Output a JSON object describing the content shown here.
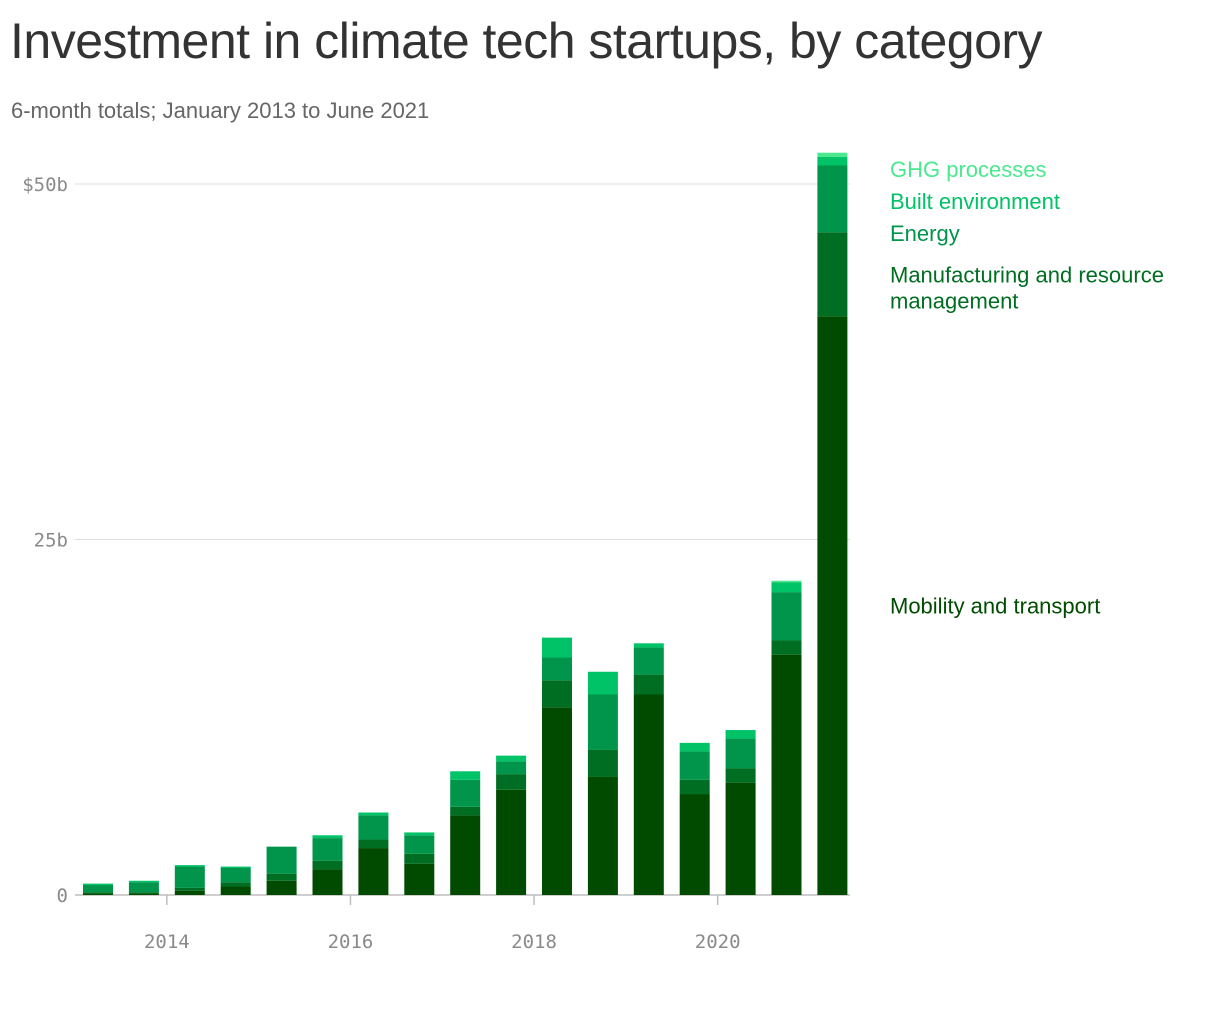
{
  "title": "Investment in climate tech startups, by category",
  "subtitle": "6-month totals; January 2013 to June 2021",
  "chart_data": {
    "type": "bar",
    "stacked": true,
    "categories": [
      "H1 2013",
      "H2 2013",
      "H1 2014",
      "H2 2014",
      "H1 2015",
      "H2 2015",
      "H1 2016",
      "H2 2016",
      "H1 2017",
      "H2 2017",
      "H1 2018",
      "H2 2018",
      "H1 2019",
      "H2 2019",
      "H1 2020",
      "H2 2020",
      "H1 2021"
    ],
    "x_tick_labels": [
      "2014",
      "2016",
      "2018",
      "2020"
    ],
    "x_tick_categories": [
      "H1 2014",
      "H1 2016",
      "H1 2018",
      "H1 2020"
    ],
    "y_tick_labels": [
      "0",
      "25b",
      "$50b"
    ],
    "y_tick_values": [
      0,
      25,
      50
    ],
    "ylim": [
      0,
      53
    ],
    "unit": "billion USD",
    "grid": true,
    "legend_placement": "right, inline labels",
    "series": [
      {
        "name": "Mobility and transport",
        "color": "#004b00",
        "values": [
          0.1,
          0.1,
          0.3,
          0.6,
          1.0,
          1.8,
          3.3,
          2.2,
          5.6,
          7.4,
          13.2,
          8.3,
          14.1,
          7.1,
          7.9,
          16.9,
          40.7
        ]
      },
      {
        "name": "Manufacturing and resource management",
        "color": "#006e22",
        "values": [
          0.1,
          0.1,
          0.2,
          0.3,
          0.5,
          0.6,
          0.6,
          0.7,
          0.6,
          1.1,
          1.9,
          1.9,
          1.4,
          1.0,
          1.0,
          1.0,
          5.9
        ]
      },
      {
        "name": "Energy",
        "color": "#00954a",
        "values": [
          0.5,
          0.7,
          1.5,
          1.0,
          1.9,
          1.6,
          1.7,
          1.3,
          1.9,
          0.9,
          1.6,
          3.9,
          1.9,
          2.0,
          2.1,
          3.4,
          4.7
        ]
      },
      {
        "name": "Built environment",
        "color": "#00c266",
        "values": [
          0.1,
          0.1,
          0.1,
          0.1,
          0.0,
          0.2,
          0.2,
          0.2,
          0.6,
          0.4,
          1.4,
          1.6,
          0.3,
          0.6,
          0.6,
          0.7,
          0.6
        ]
      },
      {
        "name": "GHG processes",
        "color": "#4ce890",
        "values": [
          0.0,
          0.0,
          0.0,
          0.0,
          0.0,
          0.0,
          0.0,
          0.0,
          0.0,
          0.0,
          0.0,
          0.0,
          0.0,
          0.0,
          0.0,
          0.1,
          0.3
        ]
      }
    ]
  }
}
